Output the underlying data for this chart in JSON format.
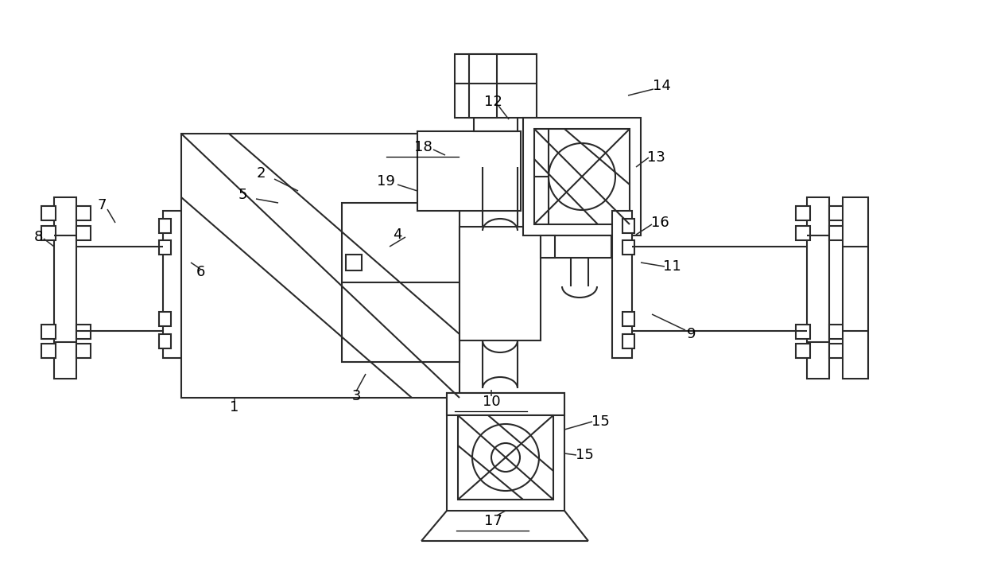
{
  "bg_color": "#ffffff",
  "line_color": "#2a2a2a",
  "lw": 1.5,
  "fig_width": 12.39,
  "fig_height": 7.14
}
